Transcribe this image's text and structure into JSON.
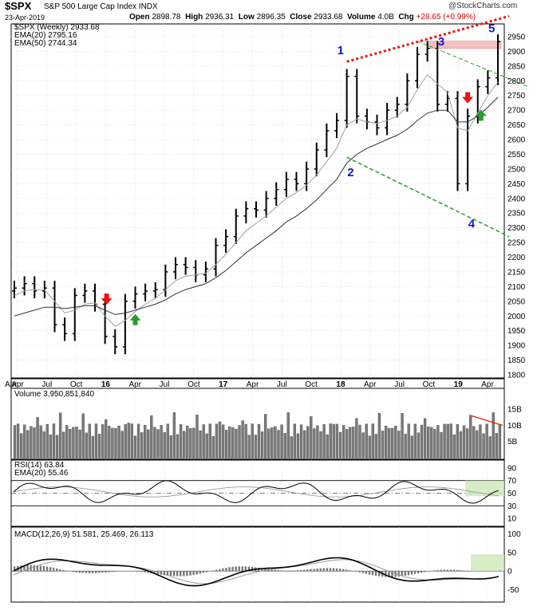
{
  "header": {
    "symbol": "$SPX",
    "name": "S&P 500 Large Cap Index",
    "exchange": "INDX",
    "date": "23-Apr-2019",
    "open_label": "Open",
    "open": "2898.78",
    "high_label": "High",
    "high": "2936.31",
    "low_label": "Low",
    "low": "2896.35",
    "close_label": "Close",
    "close": "2933.68",
    "volume_label": "Volume",
    "volume": "4.0B",
    "chg_label": "Chg",
    "chg": "+28.65 (+0.99%)",
    "brand": "@StockCharts.com"
  },
  "colors": {
    "price_bar": "#000000",
    "ema20": "#a0a0a0",
    "ema50": "#303030",
    "resistance": "#ee1111",
    "support": "#2e9a2e",
    "wave_label": "#1515cc",
    "arrow_down": "#ee1111",
    "arrow_up": "#2e9a2e",
    "highlight": "#f3bfbf",
    "rsi_highlight": "#cde8b8"
  },
  "chart_data": [
    {
      "type": "line",
      "panel": "price",
      "legend": [
        "$SPX (Weekly) 2933.68",
        "EMA(20) 2795.16",
        "EMA(50) 2744.34"
      ],
      "x": [
        "2015-04",
        "2015-05",
        "2015-06",
        "2015-07",
        "2015-08",
        "2015-09",
        "2015-10",
        "2015-11",
        "2015-12",
        "2016-01",
        "2016-02",
        "2016-03",
        "2016-04",
        "2016-05",
        "2016-06",
        "2016-07",
        "2016-08",
        "2016-09",
        "2016-10",
        "2016-11",
        "2016-12",
        "2017-01",
        "2017-02",
        "2017-03",
        "2017-04",
        "2017-05",
        "2017-06",
        "2017-07",
        "2017-08",
        "2017-09",
        "2017-10",
        "2017-11",
        "2017-12",
        "2018-01",
        "2018-02",
        "2018-03",
        "2018-04",
        "2018-05",
        "2018-06",
        "2018-07",
        "2018-08",
        "2018-09",
        "2018-10",
        "2018-11",
        "2018-12",
        "2019-01",
        "2019-02",
        "2019-03",
        "2019-04"
      ],
      "series": [
        {
          "name": "$SPX (Weekly)",
          "values": [
            2095,
            2110,
            2085,
            2095,
            1970,
            1940,
            2070,
            2085,
            2040,
            1930,
            1895,
            2050,
            2075,
            2085,
            2090,
            2150,
            2175,
            2165,
            2140,
            2160,
            2240,
            2270,
            2340,
            2365,
            2360,
            2400,
            2430,
            2465,
            2450,
            2500,
            2565,
            2630,
            2665,
            2815,
            2680,
            2660,
            2640,
            2700,
            2720,
            2800,
            2890,
            2910,
            2720,
            2740,
            2450,
            2680,
            2780,
            2810,
            2933
          ]
        },
        {
          "name": "EMA(20)",
          "values": [
            2070,
            2085,
            2090,
            2088,
            2050,
            2010,
            2020,
            2040,
            2045,
            2000,
            1965,
            1985,
            2015,
            2040,
            2060,
            2090,
            2120,
            2135,
            2140,
            2145,
            2175,
            2210,
            2250,
            2290,
            2315,
            2340,
            2370,
            2400,
            2420,
            2445,
            2480,
            2525,
            2570,
            2650,
            2670,
            2660,
            2655,
            2665,
            2680,
            2710,
            2770,
            2820,
            2790,
            2760,
            2640,
            2630,
            2690,
            2750,
            2795
          ]
        },
        {
          "name": "EMA(50)",
          "values": [
            2000,
            2010,
            2020,
            2030,
            2030,
            2025,
            2030,
            2035,
            2035,
            2020,
            2005,
            2010,
            2020,
            2030,
            2040,
            2055,
            2075,
            2090,
            2100,
            2110,
            2130,
            2155,
            2185,
            2215,
            2240,
            2265,
            2290,
            2320,
            2340,
            2365,
            2395,
            2430,
            2465,
            2520,
            2550,
            2570,
            2585,
            2600,
            2615,
            2635,
            2665,
            2690,
            2700,
            2700,
            2660,
            2660,
            2680,
            2710,
            2744
          ]
        }
      ],
      "ylim": [
        1800,
        2950
      ],
      "yticks": [
        1800,
        1850,
        1900,
        1950,
        2000,
        2050,
        2100,
        2150,
        2200,
        2250,
        2300,
        2350,
        2400,
        2450,
        2500,
        2550,
        2600,
        2650,
        2700,
        2750,
        2800,
        2850,
        2900,
        2950
      ],
      "xtick_labels": [
        "Apr",
        "Jul",
        "Oct",
        "16",
        "Apr",
        "Jul",
        "Oct",
        "17",
        "Apr",
        "Jul",
        "Oct",
        "18",
        "Apr",
        "Jul",
        "Oct",
        "19",
        "Apr"
      ],
      "wave_labels": [
        "1",
        "2",
        "3",
        "4",
        "5"
      ],
      "grid": true
    },
    {
      "type": "bar",
      "panel": "volume",
      "legend": "Volume 3,950,851,840",
      "ytick_labels": [
        "15B",
        "10B",
        "5B"
      ],
      "ylim": [
        0,
        19
      ]
    },
    {
      "type": "line",
      "panel": "rsi",
      "legend": [
        "RSI(14) 63.84",
        "EMA(20) 55.46"
      ],
      "series": [
        {
          "name": "RSI(14)",
          "last": 63.84
        },
        {
          "name": "EMA(20)",
          "last": 55.46
        }
      ],
      "ytick_labels": [
        "90",
        "70",
        "50",
        "30",
        "10"
      ],
      "ylim": [
        0,
        100
      ]
    },
    {
      "type": "line",
      "panel": "macd",
      "legend": [
        "MACD(12,26,9) 51.581",
        "25.469",
        "26.113"
      ],
      "series": [
        {
          "name": "MACD",
          "last": 51.581
        },
        {
          "name": "Signal",
          "last": 25.469
        },
        {
          "name": "Histogram",
          "last": 26.113
        }
      ],
      "ytick_labels": [
        "100",
        "50",
        "0",
        "-50"
      ],
      "ylim": [
        -75,
        110
      ]
    }
  ]
}
